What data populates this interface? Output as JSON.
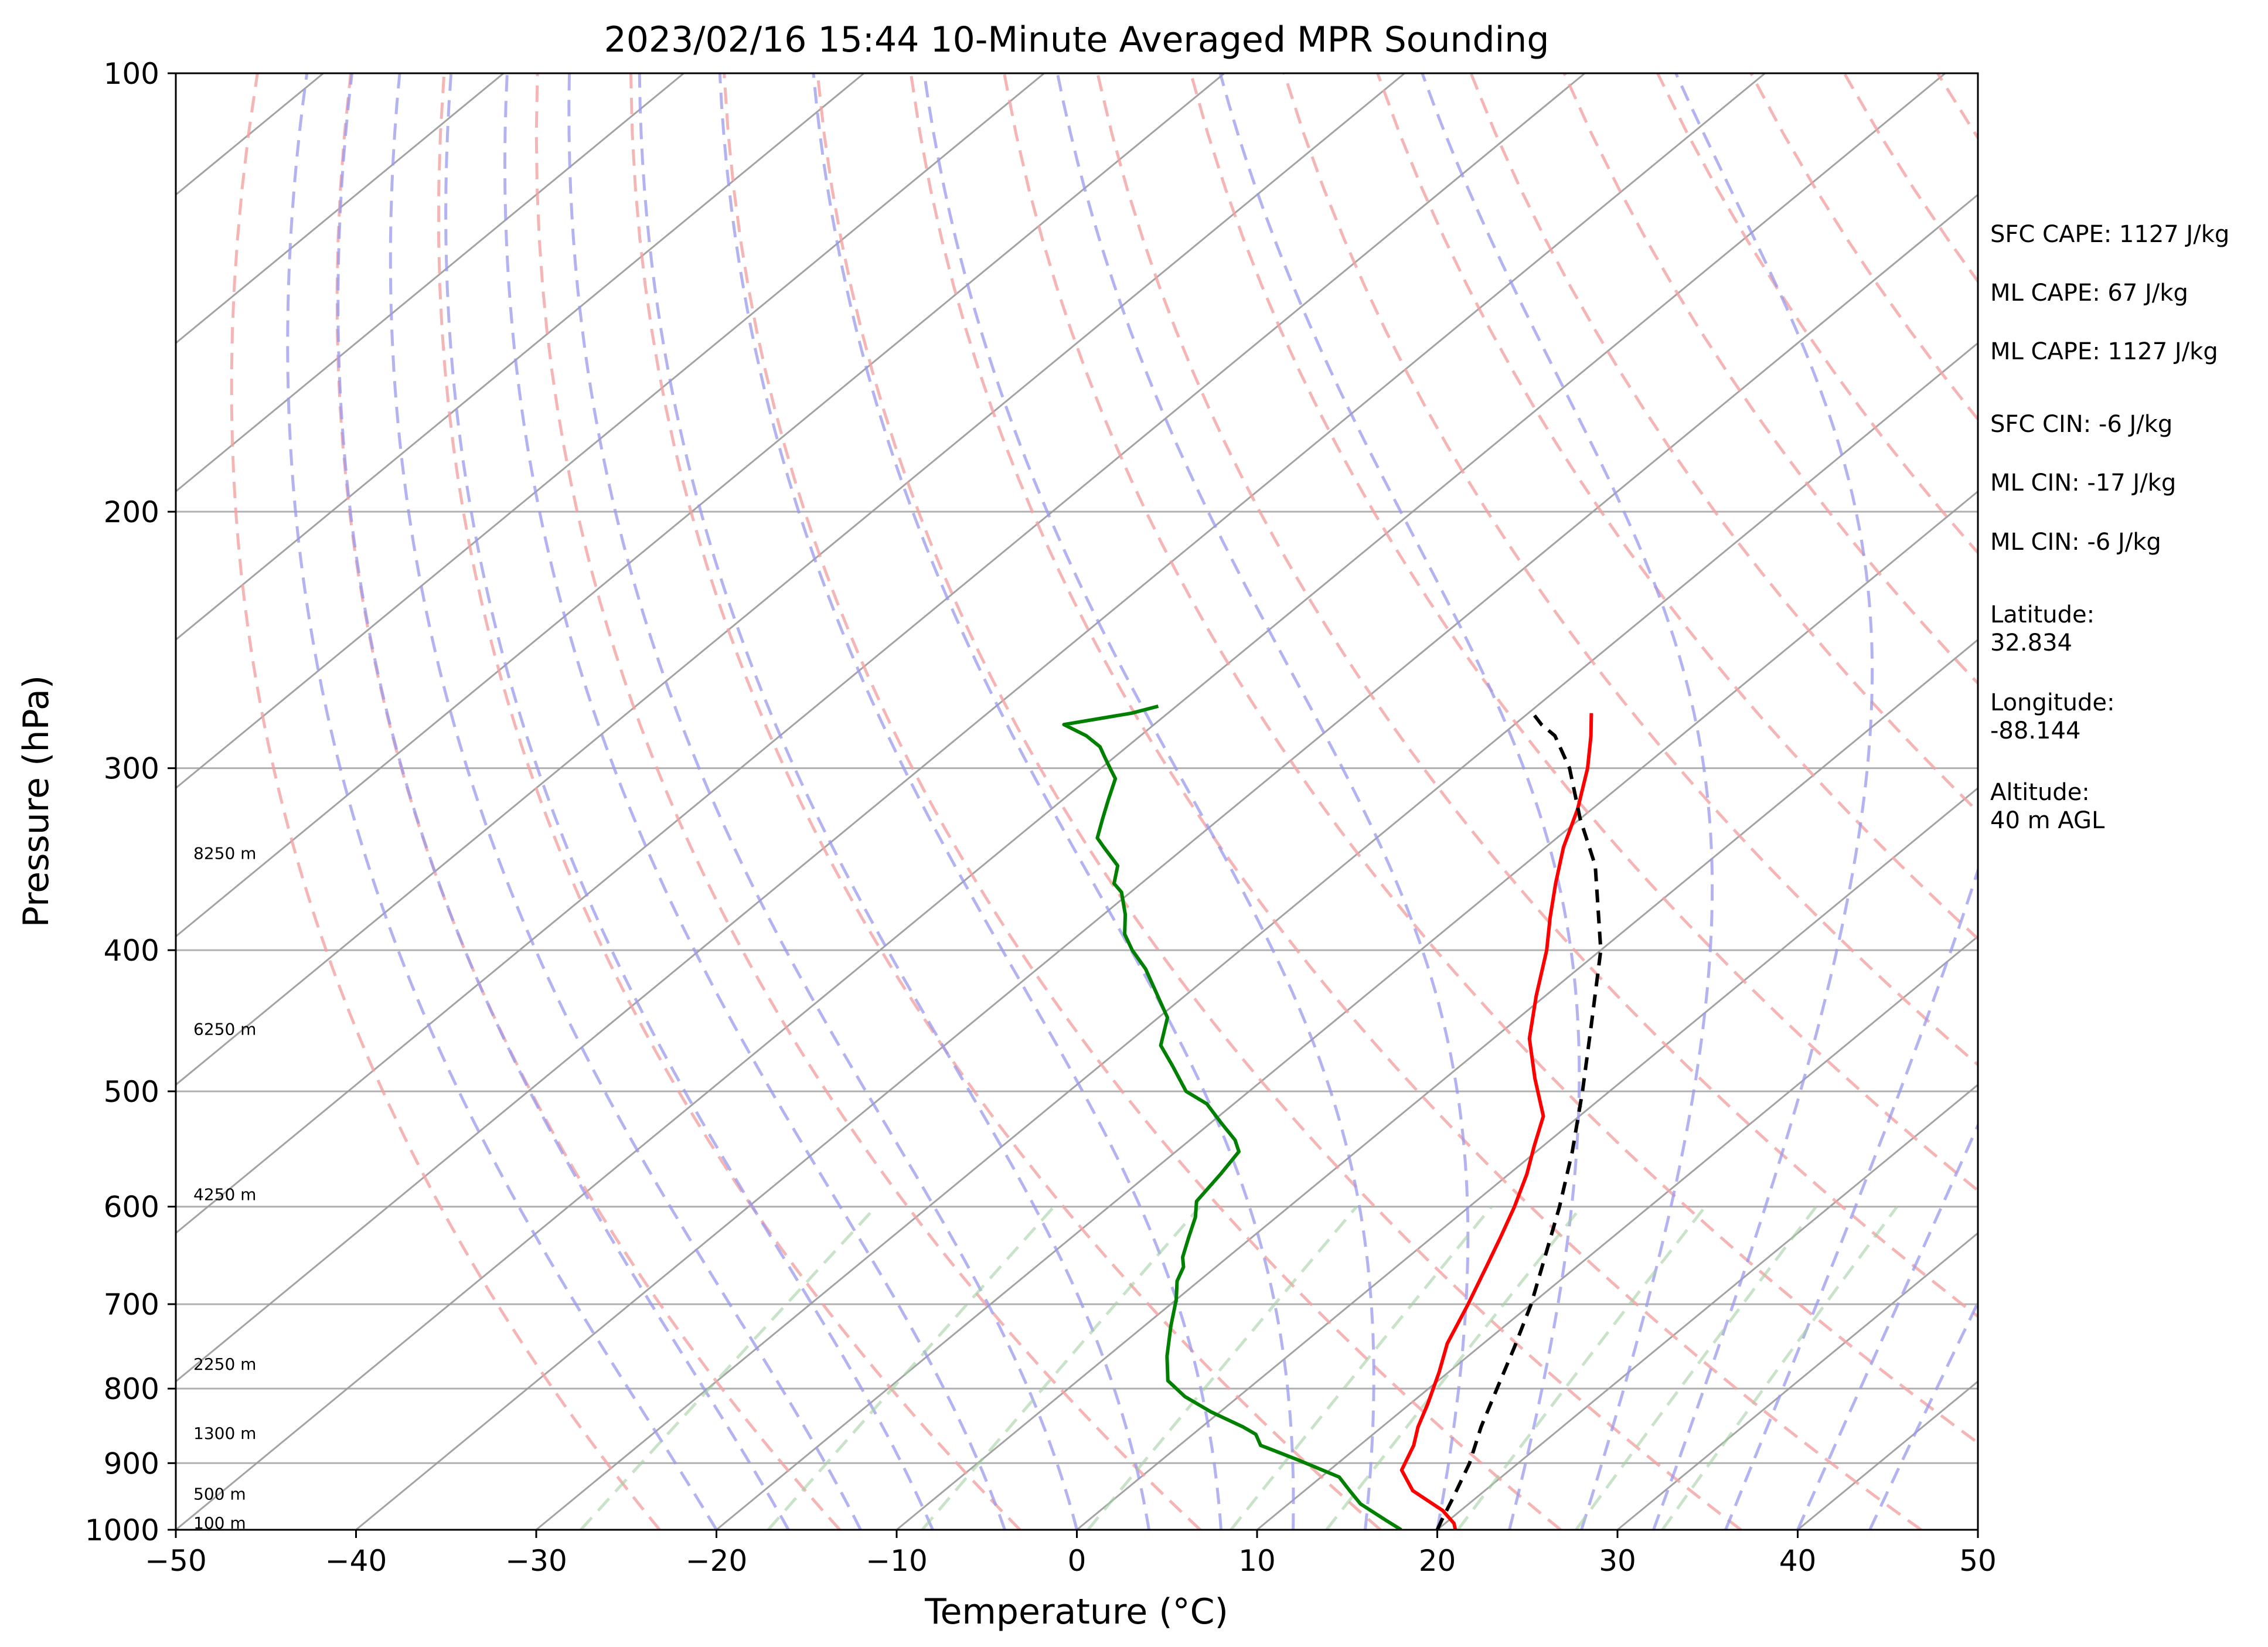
{
  "chart_data": {
    "type": "line",
    "title": "2023/02/16 15:44 10-Minute Averaged MPR Sounding",
    "xlabel": "Temperature (°C)",
    "ylabel": "Pressure (hPa)",
    "xlim": [
      -50,
      50
    ],
    "ylim": [
      1000,
      100
    ],
    "y_scale": "log",
    "skew": "skew-T",
    "x_ticks": [
      -50,
      -40,
      -30,
      -20,
      -10,
      0,
      10,
      20,
      30,
      40,
      50
    ],
    "x_tick_labels": [
      "−50",
      "−40",
      "−30",
      "−20",
      "−10",
      "0",
      "10",
      "20",
      "30",
      "40",
      "50"
    ],
    "y_ticks": [
      1000,
      900,
      800,
      700,
      600,
      500,
      400,
      300,
      200,
      100
    ],
    "y_tick_labels": [
      "1000",
      "900",
      "800",
      "700",
      "600",
      "500",
      "400",
      "300",
      "200",
      "100"
    ],
    "height_labels": [
      {
        "text": "100 m",
        "p": 1000
      },
      {
        "text": "500 m",
        "p": 955
      },
      {
        "text": "1300 m",
        "p": 868
      },
      {
        "text": "2250 m",
        "p": 778
      },
      {
        "text": "4250 m",
        "p": 595
      },
      {
        "text": "6250 m",
        "p": 458
      },
      {
        "text": "8250 m",
        "p": 347
      }
    ],
    "series": [
      {
        "role": "temperature",
        "color": "#ff0000",
        "points": [
          [
            21,
            1000
          ],
          [
            20.5,
            990
          ],
          [
            19,
            970
          ],
          [
            16,
            940
          ],
          [
            14,
            910
          ],
          [
            13,
            875
          ],
          [
            12,
            850
          ],
          [
            11,
            820
          ],
          [
            9.5,
            780
          ],
          [
            8,
            745
          ],
          [
            6.5,
            700
          ],
          [
            5,
            660
          ],
          [
            3.8,
            630
          ],
          [
            2.5,
            600
          ],
          [
            1,
            570
          ],
          [
            -0.5,
            545
          ],
          [
            -2,
            520
          ],
          [
            -5,
            490
          ],
          [
            -8,
            460
          ],
          [
            -10.5,
            430
          ],
          [
            -13,
            400
          ],
          [
            -15,
            380
          ],
          [
            -17,
            360
          ],
          [
            -19,
            340
          ],
          [
            -20.8,
            320
          ],
          [
            -23,
            300
          ],
          [
            -25,
            285
          ],
          [
            -26.5,
            275
          ]
        ]
      },
      {
        "role": "dewpoint",
        "color": "#008000",
        "points": [
          [
            18,
            1000
          ],
          [
            16.5,
            985
          ],
          [
            14,
            960
          ],
          [
            12.5,
            940
          ],
          [
            11,
            920
          ],
          [
            7.5,
            895
          ],
          [
            4.5,
            875
          ],
          [
            3.5,
            860
          ],
          [
            2.3,
            850
          ],
          [
            -0.5,
            830
          ],
          [
            -3,
            810
          ],
          [
            -5,
            790
          ],
          [
            -6.7,
            760
          ],
          [
            -8.5,
            725
          ],
          [
            -10,
            695
          ],
          [
            -11.2,
            675
          ],
          [
            -11.8,
            660
          ],
          [
            -12.5,
            650
          ],
          [
            -13.5,
            630
          ],
          [
            -14.5,
            610
          ],
          [
            -15.5,
            595
          ],
          [
            -16,
            570
          ],
          [
            -16.5,
            550
          ],
          [
            -17.5,
            540
          ],
          [
            -19.5,
            525
          ],
          [
            -21.5,
            510
          ],
          [
            -23.5,
            500
          ],
          [
            -26,
            480
          ],
          [
            -28,
            465
          ],
          [
            -29.5,
            445
          ],
          [
            -31.5,
            430
          ],
          [
            -34,
            412
          ],
          [
            -36,
            400
          ],
          [
            -37.5,
            390
          ],
          [
            -38.8,
            378
          ],
          [
            -40.5,
            365
          ],
          [
            -41.5,
            360
          ],
          [
            -42.5,
            350
          ],
          [
            -44.5,
            340
          ],
          [
            -45.5,
            335
          ],
          [
            -46.5,
            325
          ],
          [
            -47.5,
            315
          ],
          [
            -48.5,
            305
          ],
          [
            -49.5,
            300
          ],
          [
            -50.5,
            295
          ],
          [
            -51.5,
            290
          ],
          [
            -53,
            285
          ],
          [
            -55,
            280
          ],
          [
            -52,
            275
          ],
          [
            -51,
            272
          ]
        ]
      },
      {
        "role": "parcel",
        "color": "#000000",
        "style": "dashed",
        "points": [
          [
            20,
            1000
          ],
          [
            19.6,
            985
          ],
          [
            18.7,
            950
          ],
          [
            17.3,
            900
          ],
          [
            15.5,
            850
          ],
          [
            13.8,
            800
          ],
          [
            12,
            750
          ],
          [
            10,
            700
          ],
          [
            7.6,
            650
          ],
          [
            5,
            600
          ],
          [
            2,
            550
          ],
          [
            -1.5,
            500
          ],
          [
            -5.5,
            450
          ],
          [
            -10,
            400
          ],
          [
            -16,
            350
          ],
          [
            -20,
            325
          ],
          [
            -24,
            300
          ],
          [
            -27,
            285
          ],
          [
            -28.5,
            280
          ],
          [
            -29.5,
            276
          ]
        ]
      }
    ],
    "background_lines": {
      "isotherms": {
        "color": "#999999"
      },
      "dry_adiabats": {
        "color": "#f4a3a3",
        "style": "dashed"
      },
      "moist_adiabats": {
        "color": "#9999ee",
        "style": "dashed"
      },
      "mixing_ratio": {
        "color": "#99cc99",
        "style": "dashed"
      }
    }
  },
  "info": {
    "sfc_cape": "SFC CAPE: 1127 J/kg",
    "ml_cape": "ML CAPE: 67 J/kg",
    "ml_cape2": "ML CAPE: 1127 J/kg",
    "sfc_cin": "SFC CIN: -6 J/kg",
    "ml_cin": "ML CIN: -17 J/kg",
    "ml_cin2": "ML CIN: -6 J/kg",
    "latitude": "Latitude:\n32.834",
    "longitude": "Longitude:\n-88.144",
    "altitude": "Altitude:\n40 m AGL"
  }
}
